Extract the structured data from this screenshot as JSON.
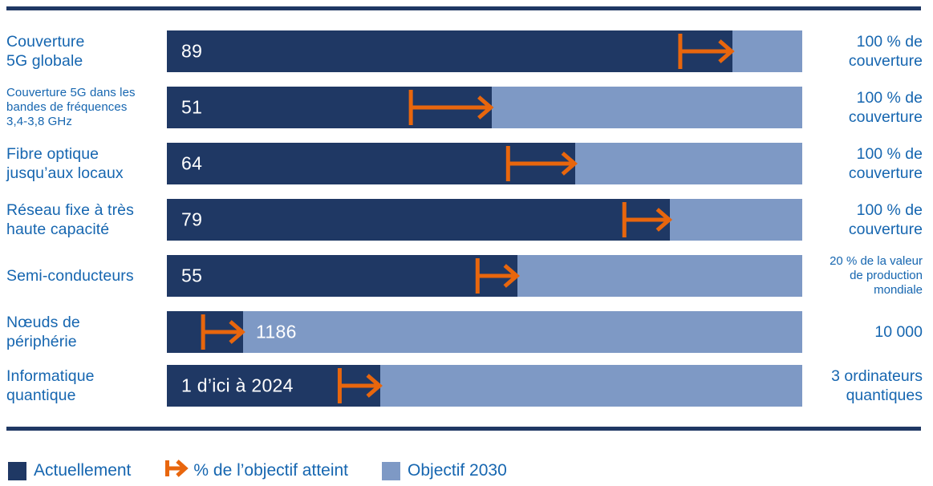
{
  "chart_data": {
    "type": "bar",
    "title": "",
    "orientation": "horizontal",
    "axis_unit": "percent of 2030 objective",
    "colors": {
      "current": "#1F3864",
      "objective": "#7E99C5",
      "arrow": "#E8660D",
      "text": "#1666B0"
    },
    "legend": [
      {
        "label": "Actuellement",
        "swatch": "square-dark"
      },
      {
        "label": "% de l’objectif atteint",
        "swatch": "arrow"
      },
      {
        "label": "Objectif 2030",
        "swatch": "square-light"
      }
    ],
    "rows": [
      {
        "label_lines": [
          "Couverture",
          "5G globale"
        ],
        "label_small": false,
        "value": 89,
        "value_label": "89",
        "current_pct": 89,
        "arrow_start_pct": 80.8,
        "value_outside": false,
        "target_lines": [
          "100 % de",
          "couverture"
        ],
        "target_small": false
      },
      {
        "label_lines": [
          "Couverture 5G dans les",
          "bandes de fréquences",
          "3,4-3,8 GHz"
        ],
        "label_small": true,
        "value": 51,
        "value_label": "51",
        "current_pct": 51.1,
        "arrow_start_pct": 38.4,
        "value_outside": false,
        "target_lines": [
          "100 % de",
          "couverture"
        ],
        "target_small": false
      },
      {
        "label_lines": [
          "Fibre optique",
          "jusqu’aux locaux"
        ],
        "label_small": false,
        "value": 64,
        "value_label": "64",
        "current_pct": 64.3,
        "arrow_start_pct": 53.7,
        "value_outside": false,
        "target_lines": [
          "100 % de",
          "couverture"
        ],
        "target_small": false
      },
      {
        "label_lines": [
          "Réseau fixe à très",
          "haute capacité"
        ],
        "label_small": false,
        "value": 79,
        "value_label": "79",
        "current_pct": 79.2,
        "arrow_start_pct": 72.0,
        "value_outside": false,
        "target_lines": [
          "100 % de",
          "couverture"
        ],
        "target_small": false
      },
      {
        "label_lines": [
          "Semi-conducteurs"
        ],
        "label_small": false,
        "value": 55,
        "value_label": "55",
        "current_pct": 55.2,
        "arrow_start_pct": 48.9,
        "value_outside": false,
        "target_lines": [
          "20 % de la valeur",
          "de production",
          "mondiale"
        ],
        "target_small": true
      },
      {
        "label_lines": [
          "Nœuds de",
          "périphérie"
        ],
        "label_small": false,
        "value": 1186,
        "value_label": "1186",
        "current_pct": 12.0,
        "arrow_start_pct": 5.7,
        "value_outside": true,
        "target_lines": [
          "10 000"
        ],
        "target_small": false
      },
      {
        "label_lines": [
          "Informatique",
          "quantique"
        ],
        "label_small": false,
        "value": 1,
        "value_label": "1 d’ici à 2024",
        "current_pct": 33.6,
        "arrow_start_pct": 27.2,
        "value_outside": false,
        "target_lines": [
          "3 ordinateurs",
          "quantiques"
        ],
        "target_small": false
      }
    ]
  }
}
